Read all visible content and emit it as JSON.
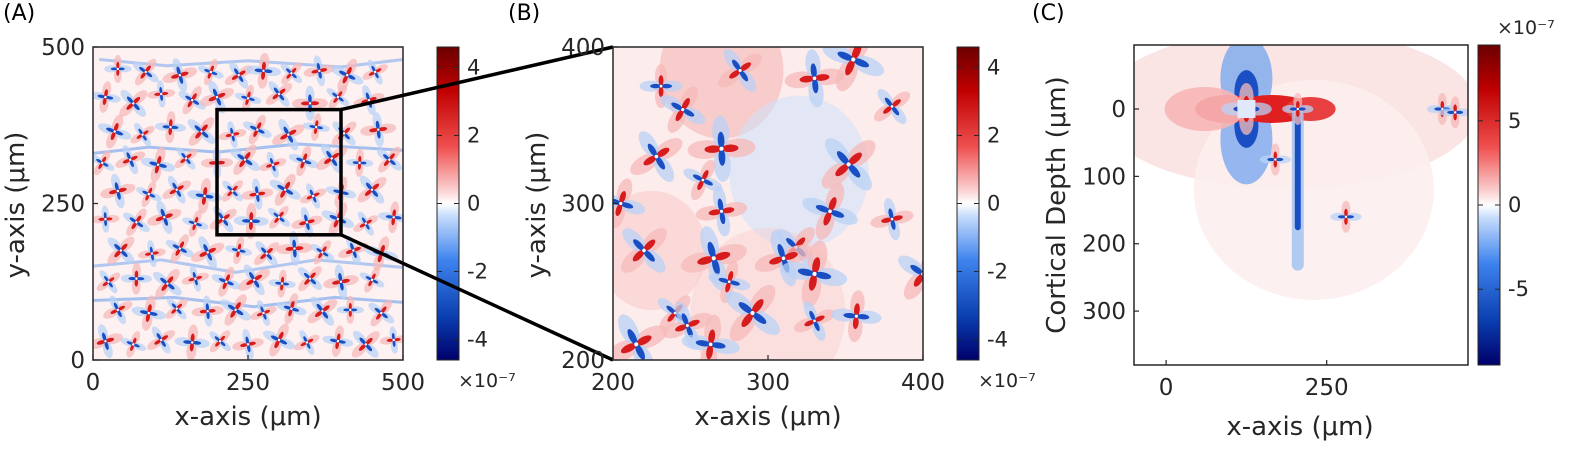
{
  "figure": {
    "colors": {
      "positive": "#b30000",
      "negative": "#0d3fa8",
      "zero": "#ffffff",
      "axis": "#262626"
    },
    "zoom_box_color": "#000000"
  },
  "chart_data": [
    {
      "panel": "(A)",
      "type": "heatmap",
      "xlabel": "x-axis (μm)",
      "ylabel": "y-axis (μm)",
      "xlim": [
        0,
        500
      ],
      "ylim": [
        0,
        500
      ],
      "xticks": [
        "0",
        "250",
        "500"
      ],
      "yticks": [
        "0",
        "250",
        "500"
      ],
      "colorbar": {
        "ticks": [
          "4",
          "2",
          "0",
          "-2",
          "-4"
        ],
        "range": [
          -4.6,
          4.6
        ],
        "multiplier": "×10⁻⁷",
        "colormap": "blue-white-red diverging"
      },
      "zoom_region": {
        "x": [
          200,
          400
        ],
        "y": [
          200,
          400
        ]
      },
      "sources": [
        [
          40,
          465
        ],
        [
          85,
          460
        ],
        [
          140,
          455
        ],
        [
          190,
          460
        ],
        [
          235,
          455
        ],
        [
          275,
          462
        ],
        [
          320,
          458
        ],
        [
          365,
          462
        ],
        [
          410,
          455
        ],
        [
          455,
          460
        ],
        [
          20,
          420
        ],
        [
          65,
          410
        ],
        [
          110,
          425
        ],
        [
          160,
          415
        ],
        [
          200,
          420
        ],
        [
          250,
          418
        ],
        [
          300,
          425
        ],
        [
          350,
          410
        ],
        [
          395,
          420
        ],
        [
          445,
          415
        ],
        [
          35,
          365
        ],
        [
          80,
          360
        ],
        [
          125,
          372
        ],
        [
          175,
          365
        ],
        [
          225,
          360
        ],
        [
          265,
          368
        ],
        [
          315,
          360
        ],
        [
          360,
          372
        ],
        [
          405,
          362
        ],
        [
          460,
          368
        ],
        [
          15,
          315
        ],
        [
          60,
          320
        ],
        [
          105,
          312
        ],
        [
          150,
          322
        ],
        [
          200,
          315
        ],
        [
          245,
          320
        ],
        [
          290,
          312
        ],
        [
          340,
          318
        ],
        [
          385,
          322
        ],
        [
          430,
          315
        ],
        [
          478,
          320
        ],
        [
          40,
          270
        ],
        [
          90,
          265
        ],
        [
          135,
          272
        ],
        [
          180,
          262
        ],
        [
          225,
          270
        ],
        [
          265,
          265
        ],
        [
          310,
          272
        ],
        [
          355,
          262
        ],
        [
          400,
          268
        ],
        [
          450,
          272
        ],
        [
          20,
          225
        ],
        [
          70,
          220
        ],
        [
          115,
          228
        ],
        [
          165,
          218
        ],
        [
          210,
          225
        ],
        [
          255,
          222
        ],
        [
          300,
          228
        ],
        [
          345,
          220
        ],
        [
          395,
          225
        ],
        [
          440,
          218
        ],
        [
          485,
          228
        ],
        [
          45,
          175
        ],
        [
          95,
          170
        ],
        [
          140,
          178
        ],
        [
          185,
          172
        ],
        [
          235,
          175
        ],
        [
          280,
          170
        ],
        [
          325,
          178
        ],
        [
          370,
          172
        ],
        [
          420,
          175
        ],
        [
          465,
          170
        ],
        [
          25,
          125
        ],
        [
          70,
          130
        ],
        [
          120,
          122
        ],
        [
          165,
          130
        ],
        [
          215,
          125
        ],
        [
          260,
          128
        ],
        [
          305,
          122
        ],
        [
          350,
          130
        ],
        [
          400,
          125
        ],
        [
          450,
          128
        ],
        [
          40,
          80
        ],
        [
          90,
          75
        ],
        [
          135,
          82
        ],
        [
          185,
          78
        ],
        [
          230,
          80
        ],
        [
          275,
          75
        ],
        [
          320,
          82
        ],
        [
          370,
          78
        ],
        [
          415,
          80
        ],
        [
          465,
          75
        ],
        [
          20,
          30
        ],
        [
          65,
          25
        ],
        [
          110,
          32
        ],
        [
          160,
          28
        ],
        [
          205,
          30
        ],
        [
          250,
          25
        ],
        [
          300,
          32
        ],
        [
          345,
          28
        ],
        [
          395,
          30
        ],
        [
          440,
          25
        ],
        [
          485,
          32
        ]
      ],
      "streaks": [
        [
          [
            10,
            480
          ],
          [
            120,
            470
          ],
          [
            250,
            478
          ],
          [
            400,
            468
          ],
          [
            500,
            480
          ]
        ],
        [
          [
            0,
            330
          ],
          [
            90,
            340
          ],
          [
            200,
            332
          ],
          [
            330,
            345
          ],
          [
            500,
            335
          ]
        ],
        [
          [
            0,
            150
          ],
          [
            110,
            160
          ],
          [
            230,
            140
          ],
          [
            360,
            160
          ],
          [
            500,
            148
          ]
        ],
        [
          [
            0,
            95
          ],
          [
            130,
            100
          ],
          [
            260,
            85
          ],
          [
            390,
            100
          ],
          [
            500,
            92
          ]
        ]
      ]
    },
    {
      "panel": "(B)",
      "type": "heatmap",
      "xlabel": "x-axis (μm)",
      "ylabel": "y-axis (μm)",
      "xlim": [
        200,
        400
      ],
      "ylim": [
        200,
        400
      ],
      "xticks": [
        "200",
        "300",
        "400"
      ],
      "yticks": [
        "200",
        "300",
        "400"
      ],
      "colorbar": {
        "ticks": [
          "4",
          "2",
          "0",
          "-2",
          "-4"
        ],
        "range": [
          -4.6,
          4.6
        ],
        "multiplier": "×10⁻⁷",
        "colormap": "blue-white-red diverging"
      },
      "sources": [
        [
          231,
          375
        ],
        [
          245,
          360
        ],
        [
          228,
          330
        ],
        [
          270,
          335
        ],
        [
          258,
          315
        ],
        [
          282,
          385
        ],
        [
          330,
          380
        ],
        [
          355,
          392
        ],
        [
          380,
          362
        ],
        [
          270,
          295
        ],
        [
          340,
          295
        ],
        [
          352,
          325
        ],
        [
          380,
          290
        ],
        [
          205,
          300
        ],
        [
          220,
          270
        ],
        [
          265,
          265
        ],
        [
          275,
          250
        ],
        [
          318,
          272
        ],
        [
          310,
          265
        ],
        [
          330,
          255
        ],
        [
          240,
          230
        ],
        [
          248,
          222
        ],
        [
          263,
          210
        ],
        [
          290,
          230
        ],
        [
          330,
          225
        ],
        [
          357,
          228
        ],
        [
          400,
          255
        ],
        [
          215,
          210
        ]
      ],
      "background": [
        {
          "x": 270,
          "y": 385,
          "v": 0.5,
          "r": 40
        },
        {
          "x": 320,
          "y": 320,
          "v": -0.35,
          "r": 45
        },
        {
          "x": 225,
          "y": 270,
          "v": 0.3,
          "r": 35
        },
        {
          "x": 300,
          "y": 230,
          "v": 0.2,
          "r": 50
        }
      ]
    },
    {
      "panel": "(C)",
      "type": "heatmap",
      "xlabel": "x-axis (μm)",
      "ylabel": "Cortical Depth (μm)",
      "xlim": [
        -50,
        470
      ],
      "ylim": [
        -95,
        380
      ],
      "xticks": [
        "0",
        "250"
      ],
      "yticks": [
        "0",
        "100",
        "200",
        "300"
      ],
      "yaxis_reversed": true,
      "colorbar": {
        "ticks": [
          "5",
          "0",
          "-5"
        ],
        "range": [
          -9.5,
          9.5
        ],
        "multiplier": "×10⁻⁷",
        "colormap": "blue-white-red diverging"
      },
      "features": [
        {
          "kind": "soma",
          "x": 125,
          "y": 0
        },
        {
          "kind": "soma",
          "x": 205,
          "y": 0
        },
        {
          "kind": "dendrite",
          "x": 205,
          "y": [
            0,
            240
          ]
        },
        {
          "kind": "soma",
          "x": 280,
          "y": 160
        },
        {
          "kind": "soma",
          "x": 430,
          "y": 0
        },
        {
          "kind": "soma",
          "x": 450,
          "y": 5
        },
        {
          "kind": "soma",
          "x": 170,
          "y": 75
        }
      ]
    }
  ]
}
